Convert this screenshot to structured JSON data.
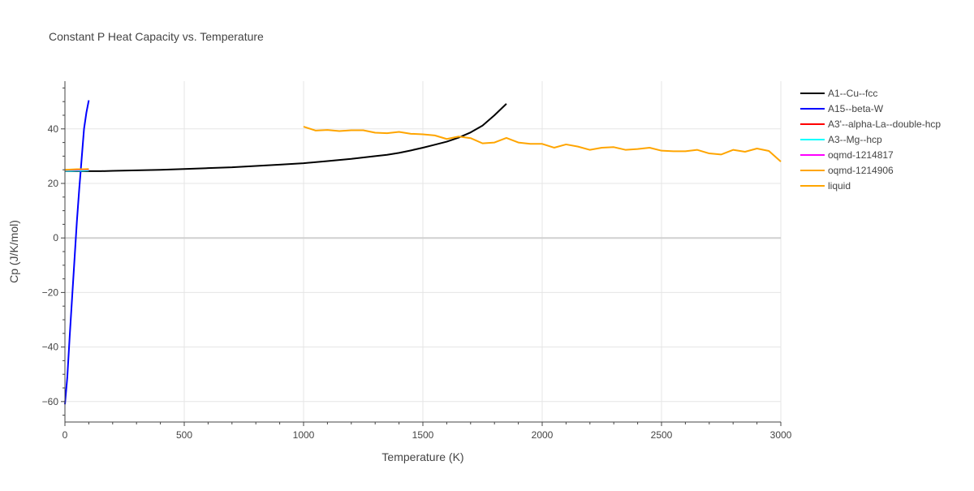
{
  "chart_data": {
    "type": "line",
    "title": "Constant P Heat Capacity vs. Temperature",
    "xlabel": "Temperature (K)",
    "ylabel": "Cp (J/K/mol)",
    "xlim": [
      0,
      3000
    ],
    "ylim": [
      -67.5,
      57.5
    ],
    "xticks": [
      0,
      500,
      1000,
      1500,
      2000,
      2500,
      3000
    ],
    "xtick_labels": [
      "0",
      "500",
      "1000",
      "1500",
      "2000",
      "2500",
      "3000"
    ],
    "yticks": [
      -60,
      -40,
      -20,
      0,
      20,
      40
    ],
    "ytick_labels": [
      "−60",
      "−40",
      "−20",
      "0",
      "20",
      "40"
    ],
    "grid": true,
    "legend_position": "top-right, outside plot",
    "series": [
      {
        "name": "A1--Cu--fcc",
        "color": "#000000",
        "x": [
          0,
          100,
          150,
          200,
          300,
          400,
          500,
          600,
          700,
          800,
          900,
          1000,
          1100,
          1200,
          1300,
          1350,
          1400,
          1450,
          1500,
          1550,
          1600,
          1650,
          1700,
          1750,
          1800,
          1850
        ],
        "y": [
          24.5,
          24.5,
          24.5,
          24.6,
          24.8,
          25.0,
          25.3,
          25.6,
          25.9,
          26.4,
          26.9,
          27.4,
          28.2,
          29.0,
          30.0,
          30.5,
          31.2,
          32.1,
          33.1,
          34.2,
          35.3,
          36.8,
          38.7,
          41.2,
          45.0,
          49.2
        ]
      },
      {
        "name": "A15--beta-W",
        "color": "#0000ff",
        "x": [
          0,
          10,
          20,
          30,
          40,
          50,
          60,
          70,
          80,
          90,
          100
        ],
        "y": [
          -61,
          -51,
          -36,
          -22,
          -8,
          6,
          18,
          29,
          40,
          46,
          50.5
        ]
      },
      {
        "name": "A3'--alpha-La--double-hcp",
        "color": "#ff0000",
        "x": [
          0,
          25,
          50,
          75,
          100
        ],
        "y": [
          24.7,
          24.8,
          24.8,
          24.9,
          24.9
        ]
      },
      {
        "name": "A3--Mg--hcp",
        "color": "#00ffff",
        "x": [
          0,
          25,
          50,
          75,
          100
        ],
        "y": [
          24.6,
          24.6,
          24.7,
          24.7,
          24.8
        ]
      },
      {
        "name": "oqmd-1214817",
        "color": "#ff00ff",
        "x": [
          0,
          25,
          50,
          75,
          100
        ],
        "y": [
          24.9,
          25.0,
          25.0,
          25.1,
          25.1
        ]
      },
      {
        "name": "oqmd-1214906",
        "color": "#ffa500",
        "x": [
          0,
          25,
          50,
          75,
          100
        ],
        "y": [
          25.0,
          25.1,
          25.2,
          25.2,
          25.3
        ]
      },
      {
        "name": "liquid",
        "color": "#ffa500",
        "x": [
          1000,
          1050,
          1100,
          1150,
          1200,
          1250,
          1300,
          1350,
          1400,
          1450,
          1500,
          1550,
          1600,
          1650,
          1700,
          1750,
          1800,
          1850,
          1900,
          1950,
          2000,
          2050,
          2100,
          2150,
          2200,
          2250,
          2300,
          2350,
          2400,
          2450,
          2500,
          2550,
          2600,
          2650,
          2700,
          2750,
          2800,
          2850,
          2900,
          2950,
          3000
        ],
        "y": [
          40.8,
          39.4,
          39.6,
          39.2,
          39.5,
          39.5,
          38.6,
          38.4,
          38.9,
          38.2,
          38.0,
          37.6,
          36.3,
          37.2,
          36.6,
          34.7,
          35.0,
          36.7,
          35.0,
          34.5,
          34.5,
          33.1,
          34.3,
          33.5,
          32.3,
          33.1,
          33.3,
          32.3,
          32.6,
          33.1,
          32.0,
          31.8,
          31.8,
          32.3,
          31.0,
          30.6,
          32.3,
          31.6,
          32.8,
          31.9,
          28.0
        ]
      }
    ]
  }
}
